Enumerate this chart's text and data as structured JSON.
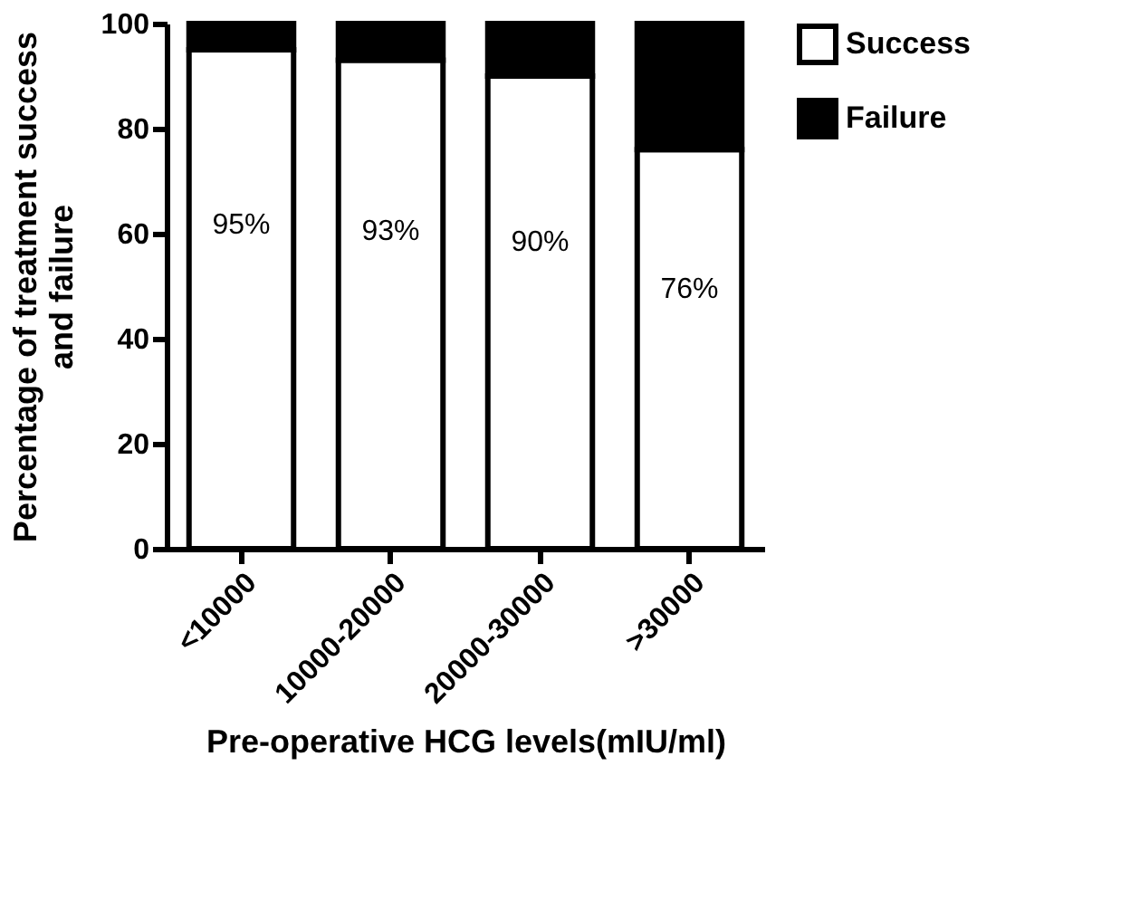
{
  "chart_data": {
    "type": "bar",
    "stacked": true,
    "xlabel": "Pre-operative HCG levels(mIU/ml)",
    "ylabel": "Percentage of treatment success\nand failure",
    "categories": [
      "<10000",
      "10000-20000",
      "20000-30000",
      ">30000"
    ],
    "series": [
      {
        "name": "Success",
        "color": "#ffffff",
        "values": [
          95,
          93,
          90,
          76
        ],
        "value_labels": [
          "95%",
          "93%",
          "90%",
          "76%"
        ]
      },
      {
        "name": "Failure",
        "color": "#000000",
        "values": [
          5,
          7,
          10,
          24
        ]
      }
    ],
    "ylim": [
      0,
      100
    ],
    "yticks": [
      0,
      20,
      40,
      60,
      80,
      100
    ],
    "grid": false,
    "legend": "top right"
  }
}
